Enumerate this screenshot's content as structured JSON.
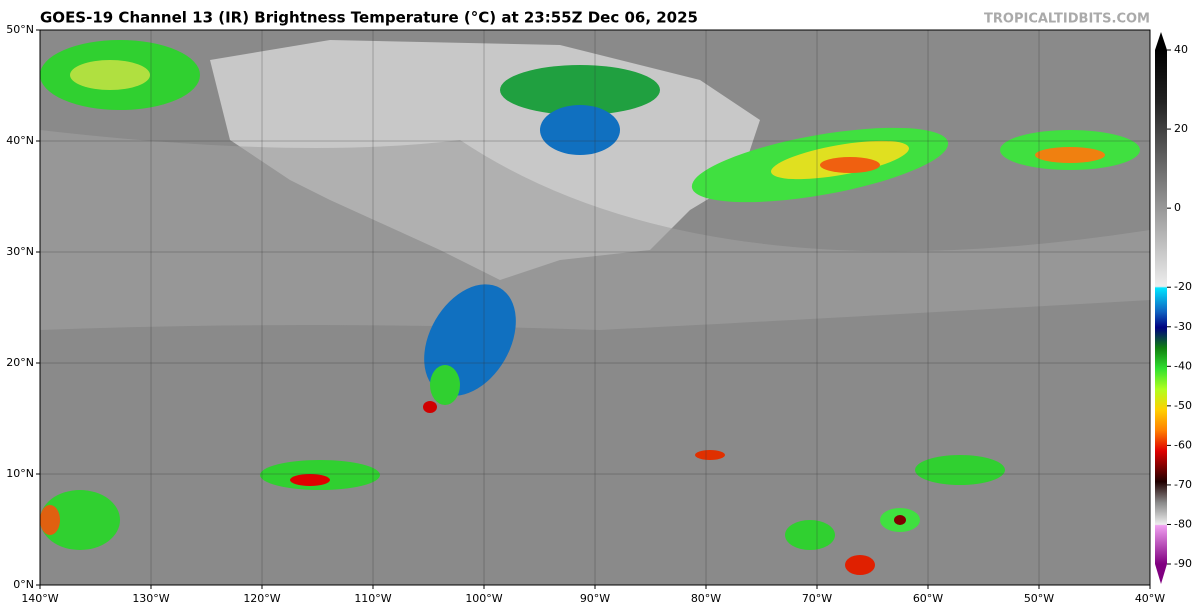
{
  "header": {
    "title": "GOES-19 Channel 13 (IR) Brightness Temperature (°C) at 23:55Z Dec 06, 2025",
    "credit": "TROPICALTIDBITS.COM"
  },
  "map": {
    "lon_range": [
      -140,
      -40
    ],
    "lat_range": [
      0,
      50
    ],
    "grid": true,
    "lon_ticks": [
      {
        "value": -140,
        "label": "140°W"
      },
      {
        "value": -130,
        "label": "130°W"
      },
      {
        "value": -120,
        "label": "120°W"
      },
      {
        "value": -110,
        "label": "110°W"
      },
      {
        "value": -100,
        "label": "100°W"
      },
      {
        "value": -90,
        "label": "90°W"
      },
      {
        "value": -80,
        "label": "80°W"
      },
      {
        "value": -70,
        "label": "70°W"
      },
      {
        "value": -60,
        "label": "60°W"
      },
      {
        "value": -50,
        "label": "50°W"
      },
      {
        "value": -40,
        "label": "40°W"
      }
    ],
    "lat_ticks": [
      {
        "value": 0,
        "label": "0°N"
      },
      {
        "value": 10,
        "label": "10°N"
      },
      {
        "value": 20,
        "label": "20°N"
      },
      {
        "value": 30,
        "label": "30°N"
      },
      {
        "value": 40,
        "label": "40°N"
      },
      {
        "value": 50,
        "label": "50°N"
      }
    ]
  },
  "colorbar": {
    "range": [
      -90,
      40
    ],
    "ticks": [
      40,
      20,
      0,
      -20,
      -30,
      -40,
      -50,
      -60,
      -70,
      -80,
      -90
    ]
  }
}
